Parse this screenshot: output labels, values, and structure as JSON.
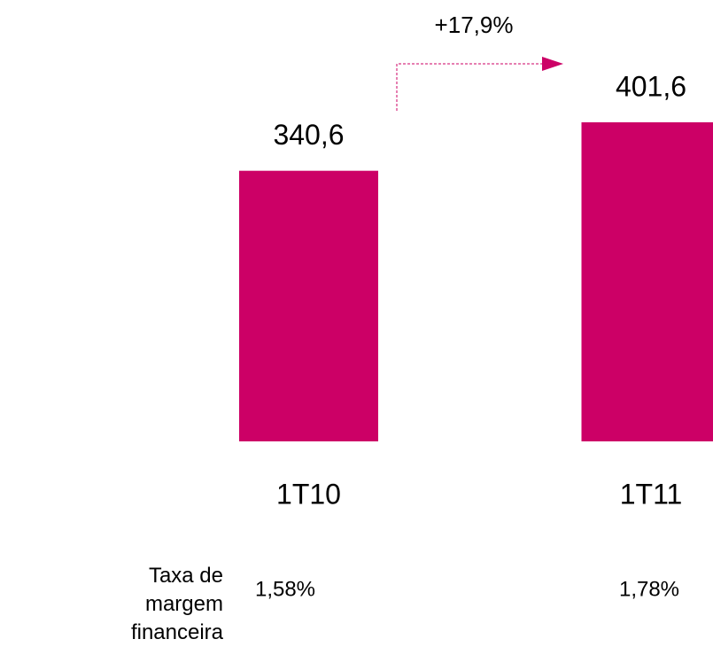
{
  "chart_data": {
    "type": "bar",
    "categories": [
      "1T10",
      "1T11"
    ],
    "values": [
      340.6,
      401.6
    ],
    "value_labels": [
      "340,6",
      "401,6"
    ],
    "color": "#cc0066",
    "annotation": "+17,9%",
    "row": {
      "label": "Taxa de margem financeira",
      "values": [
        1.58,
        1.78
      ],
      "value_labels": [
        "1,58%",
        "1,78%"
      ]
    }
  }
}
